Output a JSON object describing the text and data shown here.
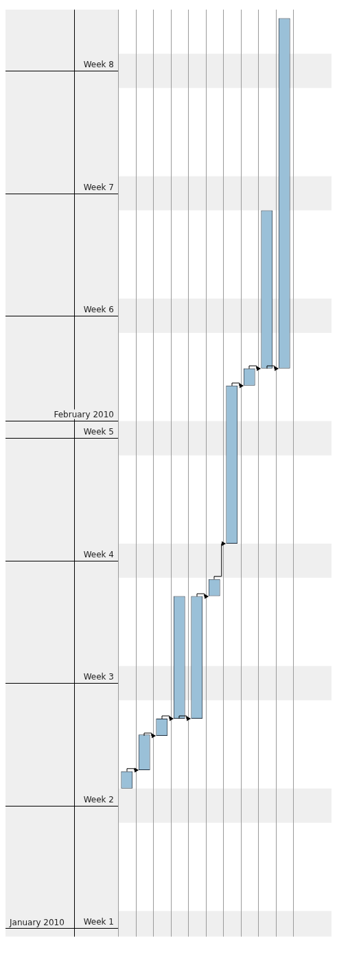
{
  "chart_data": {
    "type": "bar",
    "categories": [
      null,
      null,
      null,
      null,
      null,
      null,
      null,
      null,
      null,
      null
    ],
    "values": [
      0.14,
      0.29,
      0.14,
      1,
      1,
      0.14,
      1.29,
      0.14,
      1.29,
      2.86
    ],
    "base": [
      2.14,
      2.29,
      2.57,
      2.71,
      2.71,
      3.71,
      4.14,
      5.43,
      5.57,
      5.57
    ],
    "color": "#9ac0d8",
    "ylim": [
      0.93,
      8.5
    ],
    "ref_lines": [
      {
        "axis": "y",
        "value": 1,
        "label": "Week 1"
      },
      {
        "axis": "y",
        "value": 2,
        "label": "Week 2"
      },
      {
        "axis": "y",
        "value": 3,
        "label": "Week 3"
      },
      {
        "axis": "y",
        "value": 4,
        "label": "Week 4"
      },
      {
        "axis": "y",
        "value": 5,
        "label": "Week 5"
      },
      {
        "axis": "y",
        "value": 5.14,
        "label": "February 2010"
      },
      {
        "axis": "y",
        "value": 6,
        "label": "Week 6"
      },
      {
        "axis": "y",
        "value": 7,
        "label": "Week 7"
      },
      {
        "axis": "y",
        "value": 8,
        "label": "Week 8"
      }
    ],
    "annotations": [
      "January 2010"
    ],
    "bands": [
      {
        "axis": "y",
        "from": 0.93,
        "to": 1.14,
        "color": "#efefef"
      },
      {
        "axis": "y",
        "from": 1.86,
        "to": 2.14,
        "color": "#efefef"
      },
      {
        "axis": "y",
        "from": 2.86,
        "to": 3.14,
        "color": "#efefef"
      },
      {
        "axis": "y",
        "from": 3.86,
        "to": 4.14,
        "color": "#efefef"
      },
      {
        "axis": "y",
        "from": 4.86,
        "to": 5.14,
        "color": "#efefef"
      },
      {
        "axis": "y",
        "from": 5.86,
        "to": 6.14,
        "color": "#efefef"
      },
      {
        "axis": "y",
        "from": 6.86,
        "to": 7.14,
        "color": "#efefef"
      },
      {
        "axis": "y",
        "from": 7.86,
        "to": 8.14,
        "color": "#efefef"
      }
    ],
    "grid": "x",
    "legend": false
  }
}
